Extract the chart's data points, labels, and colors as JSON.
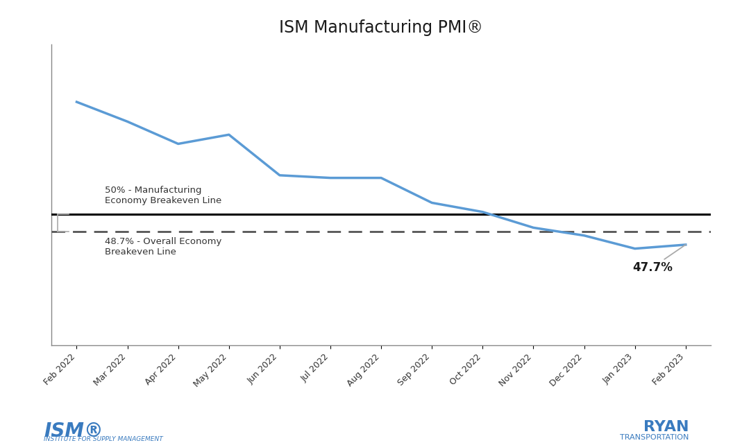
{
  "title": "ISM Manufacturing PMI®",
  "categories": [
    "Feb 2022",
    "Mar 2022",
    "Apr 2022",
    "May 2022",
    "Jun 2022",
    "Jul 2022",
    "Aug 2022",
    "Sep 2022",
    "Oct 2022",
    "Nov 2022",
    "Dec 2022",
    "Jan 2023",
    "Feb 2023"
  ],
  "values": [
    58.6,
    57.1,
    55.4,
    56.1,
    53.0,
    52.8,
    52.8,
    50.9,
    50.2,
    49.0,
    48.4,
    47.4,
    47.7
  ],
  "line_color": "#5B9BD5",
  "line_width": 2.5,
  "breakeven_50_color": "#000000",
  "breakeven_487_color": "#555555",
  "ylim_low": 40,
  "ylim_high": 63,
  "annotation_value": "47.7%",
  "annotation_color": "#1a1a1a",
  "breakeven_50": 50.0,
  "breakeven_487": 48.7,
  "label_50": "50% - Manufacturing\nEconomy Breakeven Line",
  "label_487": "48.7% - Overall Economy\nBreakeven Line",
  "background_color": "#ffffff",
  "title_fontsize": 17,
  "tick_label_fontsize": 9,
  "grid_color": "#cccccc",
  "ism_logo_text": "ISM®",
  "ism_sub_text": "INSTITUTE FOR SUPPLY MANAGEMENT",
  "ryan_logo_text": "RYAN",
  "ryan_sub_text": "TRANSPORTATION"
}
